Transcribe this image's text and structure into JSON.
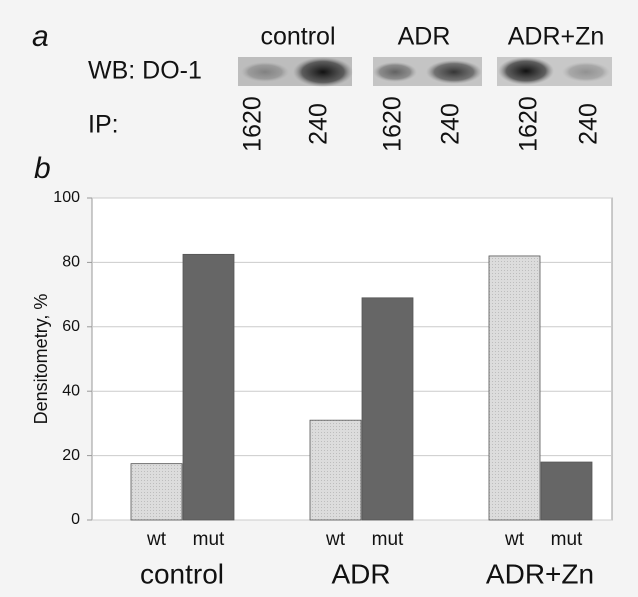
{
  "panel_a": {
    "label": "a",
    "row_label": "WB: DO-1",
    "ip_label": "IP:",
    "groups": [
      "control",
      "ADR",
      "ADR+Zn"
    ],
    "lanes": [
      "1620",
      "240",
      "1620",
      "240",
      "1620",
      "240"
    ]
  },
  "chart_data": {
    "type": "bar",
    "panel_label": "b",
    "y_label": "Densitometry, %",
    "categories": [
      "control",
      "ADR",
      "ADR+Zn"
    ],
    "series": [
      {
        "name": "wt",
        "color": "#d9d9d9",
        "values": [
          17.5,
          31,
          82
        ]
      },
      {
        "name": "mut",
        "color": "#666666",
        "values": [
          82.5,
          69,
          18
        ]
      }
    ],
    "ylim": [
      0,
      100
    ],
    "yticks": [
      0,
      20,
      40,
      60,
      80,
      100
    ],
    "grid": true
  }
}
